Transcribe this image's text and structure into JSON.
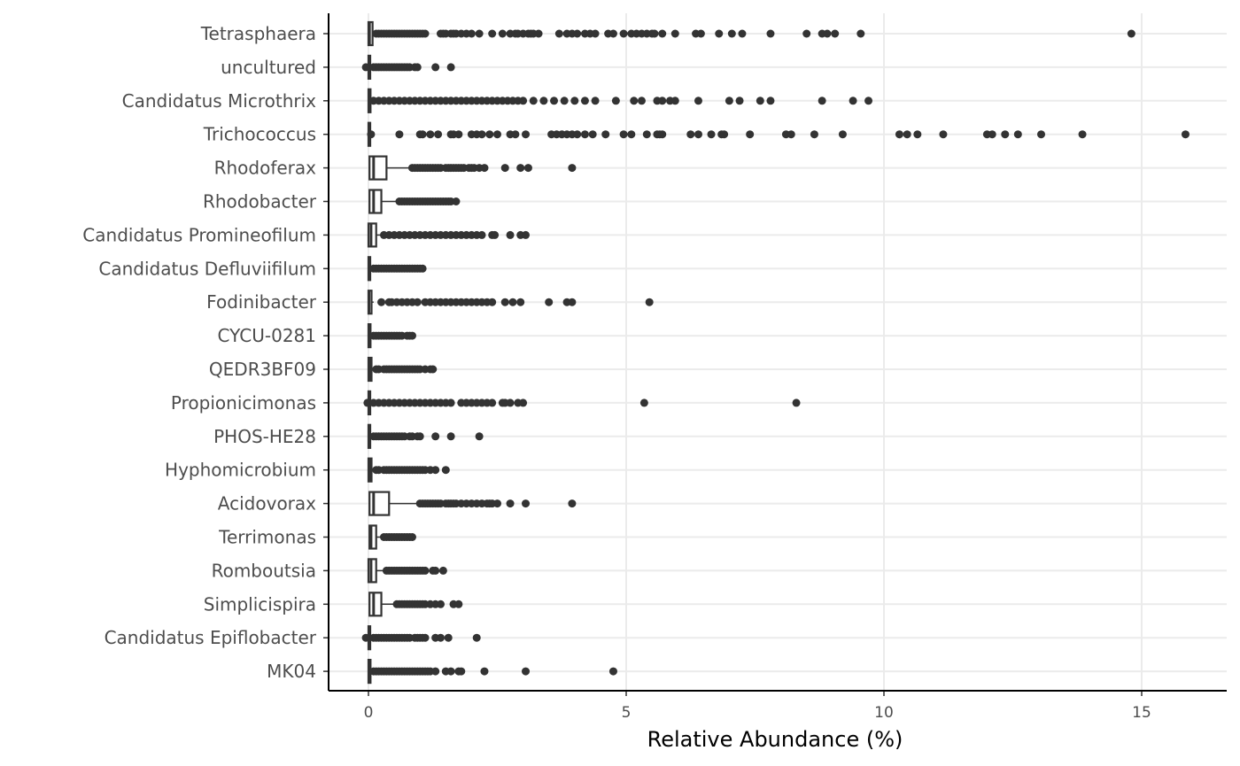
{
  "chart_data": {
    "type": "boxplot",
    "orientation": "horizontal",
    "xlabel": "Relative Abundance (%)",
    "ylabel": "",
    "title": "",
    "xlim": [
      -0.8,
      16.3
    ],
    "xticks": [
      0,
      5,
      10,
      15
    ],
    "grid": true,
    "legend": "none",
    "colors": {
      "point": "#333333",
      "box_stroke": "#333333",
      "grid": "#ebebeb",
      "axis": "#000000"
    },
    "categories": [
      "Tetrasphaera",
      "uncultured",
      "Candidatus Microthrix",
      "Trichococcus",
      "Rhodoferax",
      "Rhodobacter",
      "Candidatus Promineofilum",
      "Candidatus Defluviifilum",
      "Fodinibacter",
      "CYCU-0281",
      "QEDR3BF09",
      "Propionicimonas",
      "PHOS-HE28",
      "Hyphomicrobium",
      "Acidovorax",
      "Terrimonas",
      "Romboutsia",
      "Simplicispira",
      "Candidatus Epiflobacter",
      "MK04"
    ],
    "boxes": [
      {
        "q1": 0.0,
        "median": 0.02,
        "q3": 0.08,
        "whisker_low": 0.0,
        "whisker_high": 0.1,
        "outliers": [
          0.15,
          0.2,
          0.25,
          0.3,
          0.35,
          0.4,
          0.45,
          0.5,
          0.55,
          0.6,
          0.65,
          0.7,
          0.75,
          0.8,
          0.85,
          0.9,
          0.95,
          1.0,
          1.05,
          1.1,
          1.4,
          1.45,
          1.5,
          1.6,
          1.65,
          1.7,
          1.8,
          1.9,
          2.0,
          2.15,
          2.4,
          2.6,
          2.75,
          2.85,
          2.9,
          3.0,
          3.1,
          3.15,
          3.2,
          3.3,
          3.7,
          3.85,
          3.95,
          4.05,
          4.2,
          4.3,
          4.4,
          4.65,
          4.75,
          4.95,
          5.1,
          5.2,
          5.3,
          5.4,
          5.5,
          5.55,
          5.7,
          5.95,
          6.35,
          6.45,
          6.8,
          7.05,
          7.25,
          7.8,
          8.5,
          8.8,
          8.9,
          9.05,
          9.55,
          14.8
        ]
      },
      {
        "q1": 0.0,
        "median": 0.01,
        "q3": 0.03,
        "whisker_low": -0.05,
        "whisker_high": 0.05,
        "outliers": [
          -0.05,
          0.1,
          0.15,
          0.2,
          0.25,
          0.3,
          0.35,
          0.4,
          0.45,
          0.5,
          0.55,
          0.6,
          0.65,
          0.7,
          0.75,
          0.8,
          0.9,
          0.95,
          1.3,
          1.6
        ]
      },
      {
        "q1": 0.0,
        "median": 0.01,
        "q3": 0.04,
        "whisker_low": 0.0,
        "whisker_high": 0.05,
        "outliers": [
          0.1,
          0.2,
          0.3,
          0.4,
          0.5,
          0.6,
          0.7,
          0.8,
          0.9,
          1.0,
          1.1,
          1.2,
          1.3,
          1.4,
          1.5,
          1.6,
          1.7,
          1.8,
          1.9,
          2.0,
          2.1,
          2.2,
          2.3,
          2.4,
          2.5,
          2.6,
          2.7,
          2.8,
          2.9,
          3.0,
          3.2,
          3.4,
          3.6,
          3.8,
          4.0,
          4.2,
          4.4,
          4.8,
          5.15,
          5.3,
          5.6,
          5.7,
          5.85,
          5.95,
          6.4,
          7.0,
          7.2,
          7.6,
          7.8,
          8.8,
          9.4,
          9.7
        ]
      },
      {
        "q1": 0.0,
        "median": 0.01,
        "q3": 0.02,
        "whisker_low": 0.0,
        "whisker_high": 0.03,
        "outliers": [
          0.05,
          0.6,
          1.0,
          1.05,
          1.2,
          1.35,
          1.6,
          1.65,
          1.75,
          2.0,
          2.1,
          2.2,
          2.35,
          2.5,
          2.75,
          2.85,
          3.05,
          3.55,
          3.65,
          3.75,
          3.85,
          3.95,
          4.05,
          4.2,
          4.35,
          4.6,
          4.95,
          5.1,
          5.4,
          5.6,
          5.65,
          5.7,
          6.25,
          6.4,
          6.65,
          6.85,
          6.9,
          7.4,
          8.1,
          8.2,
          8.65,
          9.2,
          10.3,
          10.45,
          10.65,
          11.15,
          12.0,
          12.1,
          12.35,
          12.6,
          13.05,
          13.85,
          15.85
        ]
      },
      {
        "q1": 0.02,
        "median": 0.1,
        "q3": 0.35,
        "whisker_low": 0.0,
        "whisker_high": 0.82,
        "outliers": [
          0.85,
          0.9,
          0.95,
          1.0,
          1.05,
          1.1,
          1.15,
          1.2,
          1.25,
          1.3,
          1.35,
          1.4,
          1.5,
          1.55,
          1.6,
          1.65,
          1.7,
          1.75,
          1.8,
          1.85,
          1.95,
          2.0,
          2.05,
          2.15,
          2.25,
          2.65,
          2.95,
          3.1,
          3.95
        ]
      },
      {
        "q1": 0.02,
        "median": 0.1,
        "q3": 0.25,
        "whisker_low": 0.0,
        "whisker_high": 0.55,
        "outliers": [
          0.6,
          0.65,
          0.7,
          0.75,
          0.8,
          0.85,
          0.9,
          0.95,
          1.0,
          1.05,
          1.1,
          1.15,
          1.2,
          1.25,
          1.3,
          1.35,
          1.4,
          1.45,
          1.5,
          1.55,
          1.6,
          1.7
        ]
      },
      {
        "q1": 0.0,
        "median": 0.05,
        "q3": 0.15,
        "whisker_low": 0.0,
        "whisker_high": 0.25,
        "outliers": [
          0.3,
          0.4,
          0.5,
          0.6,
          0.7,
          0.8,
          0.9,
          1.0,
          1.1,
          1.2,
          1.3,
          1.4,
          1.5,
          1.6,
          1.7,
          1.8,
          1.9,
          2.0,
          2.1,
          2.2,
          2.4,
          2.45,
          2.75,
          2.95,
          3.05
        ]
      },
      {
        "q1": 0.0,
        "median": 0.01,
        "q3": 0.03,
        "whisker_low": 0.0,
        "whisker_high": 0.05,
        "outliers": [
          0.1,
          0.15,
          0.2,
          0.25,
          0.3,
          0.35,
          0.4,
          0.45,
          0.5,
          0.55,
          0.6,
          0.65,
          0.7,
          0.75,
          0.8,
          0.85,
          0.9,
          0.95,
          1.0,
          1.05
        ]
      },
      {
        "q1": 0.0,
        "median": 0.01,
        "q3": 0.06,
        "whisker_low": 0.0,
        "whisker_high": 0.1,
        "outliers": [
          0.25,
          0.4,
          0.45,
          0.55,
          0.65,
          0.75,
          0.85,
          0.95,
          1.1,
          1.2,
          1.3,
          1.4,
          1.5,
          1.6,
          1.7,
          1.8,
          1.9,
          2.0,
          2.1,
          2.2,
          2.3,
          2.4,
          2.65,
          2.8,
          2.95,
          3.5,
          3.85,
          3.95,
          5.45
        ]
      },
      {
        "q1": 0.0,
        "median": 0.01,
        "q3": 0.04,
        "whisker_low": 0.0,
        "whisker_high": 0.08,
        "outliers": [
          0.1,
          0.15,
          0.2,
          0.25,
          0.3,
          0.35,
          0.4,
          0.45,
          0.5,
          0.55,
          0.6,
          0.65,
          0.75,
          0.8,
          0.85
        ]
      },
      {
        "q1": 0.0,
        "median": 0.02,
        "q3": 0.06,
        "whisker_low": 0.0,
        "whisker_high": 0.1,
        "outliers": [
          0.15,
          0.2,
          0.3,
          0.35,
          0.4,
          0.45,
          0.5,
          0.55,
          0.6,
          0.65,
          0.7,
          0.75,
          0.8,
          0.85,
          0.9,
          0.95,
          1.0,
          1.1,
          1.2,
          1.25
        ]
      },
      {
        "q1": 0.0,
        "median": 0.01,
        "q3": 0.03,
        "whisker_low": 0.0,
        "whisker_high": 0.05,
        "outliers": [
          -0.02,
          0.1,
          0.2,
          0.3,
          0.4,
          0.5,
          0.6,
          0.7,
          0.8,
          0.9,
          1.0,
          1.1,
          1.2,
          1.3,
          1.4,
          1.5,
          1.6,
          1.8,
          1.9,
          2.0,
          2.1,
          2.2,
          2.3,
          2.4,
          2.6,
          2.65,
          2.75,
          2.9,
          3.0,
          5.35,
          8.3
        ]
      },
      {
        "q1": 0.0,
        "median": 0.01,
        "q3": 0.03,
        "whisker_low": 0.0,
        "whisker_high": 0.05,
        "outliers": [
          0.1,
          0.15,
          0.2,
          0.25,
          0.3,
          0.35,
          0.4,
          0.45,
          0.5,
          0.55,
          0.6,
          0.65,
          0.7,
          0.8,
          0.85,
          0.95,
          1.0,
          1.3,
          1.6,
          2.15
        ]
      },
      {
        "q1": 0.0,
        "median": 0.02,
        "q3": 0.06,
        "whisker_low": 0.0,
        "whisker_high": 0.1,
        "outliers": [
          0.15,
          0.2,
          0.3,
          0.35,
          0.4,
          0.45,
          0.5,
          0.55,
          0.6,
          0.65,
          0.7,
          0.75,
          0.8,
          0.85,
          0.9,
          0.95,
          1.0,
          1.05,
          1.1,
          1.2,
          1.3,
          1.5
        ]
      },
      {
        "q1": 0.02,
        "median": 0.1,
        "q3": 0.4,
        "whisker_low": 0.0,
        "whisker_high": 0.95,
        "outliers": [
          1.0,
          1.05,
          1.1,
          1.15,
          1.2,
          1.25,
          1.3,
          1.35,
          1.4,
          1.5,
          1.55,
          1.6,
          1.65,
          1.7,
          1.8,
          1.9,
          2.0,
          2.1,
          2.2,
          2.3,
          2.35,
          2.4,
          2.5,
          2.75,
          3.05,
          3.95
        ]
      },
      {
        "q1": 0.02,
        "median": 0.05,
        "q3": 0.15,
        "whisker_low": 0.0,
        "whisker_high": 0.25,
        "outliers": [
          0.3,
          0.35,
          0.4,
          0.45,
          0.5,
          0.55,
          0.6,
          0.65,
          0.7,
          0.75,
          0.8,
          0.85
        ]
      },
      {
        "q1": 0.0,
        "median": 0.05,
        "q3": 0.15,
        "whisker_low": 0.0,
        "whisker_high": 0.35,
        "outliers": [
          0.35,
          0.4,
          0.45,
          0.5,
          0.55,
          0.6,
          0.65,
          0.7,
          0.75,
          0.8,
          0.85,
          0.9,
          0.95,
          1.0,
          1.05,
          1.1,
          1.25,
          1.3,
          1.45
        ]
      },
      {
        "q1": 0.02,
        "median": 0.1,
        "q3": 0.25,
        "whisker_low": 0.0,
        "whisker_high": 0.55,
        "outliers": [
          0.55,
          0.6,
          0.65,
          0.7,
          0.75,
          0.8,
          0.85,
          0.9,
          0.95,
          1.0,
          1.05,
          1.1,
          1.2,
          1.3,
          1.4,
          1.65,
          1.75
        ]
      },
      {
        "q1": 0.0,
        "median": 0.01,
        "q3": 0.03,
        "whisker_low": -0.05,
        "whisker_high": 0.05,
        "outliers": [
          -0.05,
          0.1,
          0.15,
          0.2,
          0.25,
          0.3,
          0.35,
          0.4,
          0.45,
          0.5,
          0.55,
          0.6,
          0.65,
          0.7,
          0.75,
          0.8,
          0.9,
          0.95,
          1.0,
          1.05,
          1.1,
          1.3,
          1.4,
          1.55,
          2.1
        ]
      },
      {
        "q1": 0.0,
        "median": 0.01,
        "q3": 0.04,
        "whisker_low": 0.0,
        "whisker_high": 0.06,
        "outliers": [
          0.1,
          0.15,
          0.2,
          0.25,
          0.3,
          0.35,
          0.4,
          0.45,
          0.5,
          0.55,
          0.6,
          0.65,
          0.7,
          0.75,
          0.8,
          0.85,
          0.9,
          0.95,
          1.0,
          1.05,
          1.1,
          1.15,
          1.2,
          1.3,
          1.5,
          1.6,
          1.75,
          1.8,
          2.25,
          3.05,
          4.75
        ]
      }
    ]
  }
}
